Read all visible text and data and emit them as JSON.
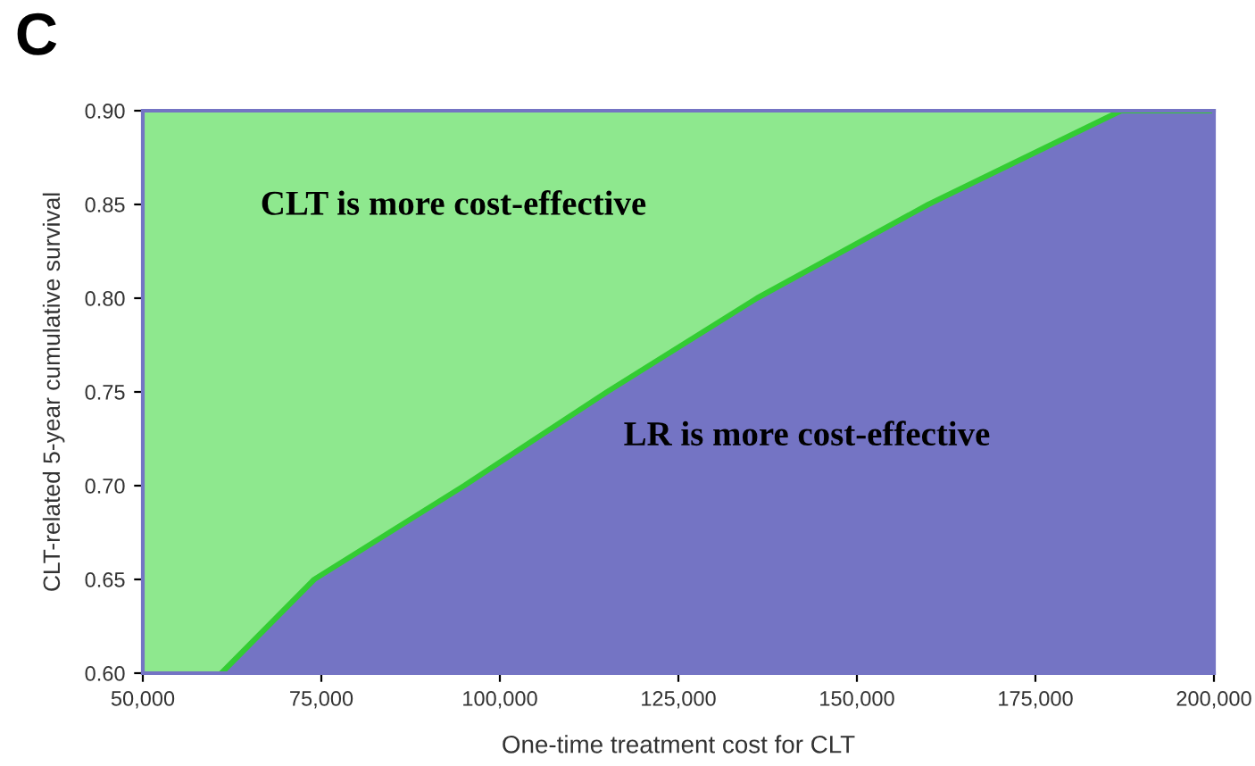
{
  "chart_data": {
    "type": "area",
    "title": "C",
    "xlabel": "One-time treatment cost for CLT",
    "ylabel": "CLT-related 5-year cumulative survival",
    "xlim": [
      50000,
      200000
    ],
    "ylim": [
      0.6,
      0.9
    ],
    "xticks": [
      {
        "value": 50000,
        "label": "50,000"
      },
      {
        "value": 75000,
        "label": "75,000"
      },
      {
        "value": 100000,
        "label": "100,000"
      },
      {
        "value": 125000,
        "label": "125,000"
      },
      {
        "value": 150000,
        "label": "150,000"
      },
      {
        "value": 175000,
        "label": "175,000"
      },
      {
        "value": 200000,
        "label": "200,000"
      }
    ],
    "yticks": [
      {
        "value": 0.6,
        "label": "0.60"
      },
      {
        "value": 0.65,
        "label": "0.65"
      },
      {
        "value": 0.7,
        "label": "0.70"
      },
      {
        "value": 0.75,
        "label": "0.75"
      },
      {
        "value": 0.8,
        "label": "0.80"
      },
      {
        "value": 0.85,
        "label": "0.85"
      },
      {
        "value": 0.9,
        "label": "0.90"
      }
    ],
    "series": [
      {
        "color": "#8ee88e",
        "x": [
          50000,
          200000
        ],
        "values": [
          0.9,
          0.9
        ]
      },
      {
        "color": "#7474c4",
        "x": [
          61000,
          74000,
          95000,
          115000,
          136000,
          160000,
          187000,
          200000
        ],
        "values": [
          0.6,
          0.65,
          0.7,
          0.75,
          0.8,
          0.85,
          0.9,
          0.9
        ]
      }
    ],
    "annotations": [
      "CLT is more cost-effective",
      "LR is more cost-effective"
    ],
    "grid": false,
    "legend": false
  }
}
